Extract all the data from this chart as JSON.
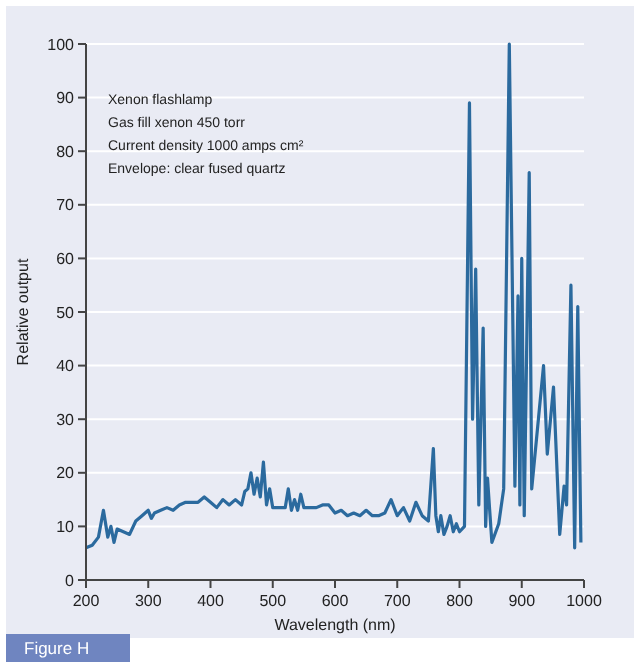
{
  "chart_data": {
    "type": "line",
    "xlabel": "Wavelength (nm)",
    "ylabel": "Relative output",
    "annotations": [
      "Xenon flashlamp",
      "Gas fill xenon 450 torr",
      "Current density 1000 amps cm²",
      "Envelope: clear fused quartz",
      "Figure H"
    ],
    "xlim": [
      200,
      1000
    ],
    "xticks": [
      200,
      300,
      400,
      500,
      600,
      700,
      800,
      900,
      1000
    ],
    "ylim": [
      0,
      100
    ],
    "yticks": [
      0,
      10,
      20,
      30,
      40,
      50,
      60,
      70,
      80,
      90,
      100
    ],
    "grid": "y",
    "series": [
      {
        "color": "#2b6a9e",
        "x": [
          200,
          210,
          220,
          228,
          235,
          240,
          245,
          250,
          260,
          270,
          280,
          290,
          300,
          305,
          310,
          320,
          330,
          340,
          350,
          360,
          370,
          380,
          390,
          400,
          410,
          420,
          430,
          440,
          450,
          455,
          460,
          465,
          470,
          475,
          480,
          485,
          490,
          495,
          500,
          510,
          520,
          525,
          530,
          535,
          540,
          545,
          550,
          560,
          570,
          580,
          590,
          600,
          610,
          620,
          630,
          640,
          650,
          660,
          670,
          680,
          690,
          700,
          710,
          720,
          730,
          740,
          750,
          758,
          762,
          766,
          770,
          775,
          780,
          785,
          790,
          795,
          800,
          808,
          816,
          821,
          826,
          831,
          838,
          842,
          845,
          852,
          863,
          871,
          880,
          889,
          894,
          897,
          900,
          904,
          912,
          916,
          935,
          941,
          951,
          961,
          968,
          972,
          979,
          985,
          990,
          995
        ],
        "values": [
          6,
          6.5,
          8,
          13,
          8,
          10,
          7,
          9.5,
          9,
          8.5,
          11,
          12,
          13,
          11.5,
          12.5,
          13,
          13.5,
          13,
          14,
          14.5,
          14.5,
          14.5,
          15.5,
          14.5,
          13.5,
          15,
          14,
          15,
          14,
          16.5,
          17,
          20,
          16,
          19,
          15.5,
          22,
          14,
          17,
          13.5,
          13.5,
          13.5,
          17,
          13,
          15,
          13,
          16,
          13.5,
          13.5,
          13.5,
          14,
          14,
          12.5,
          13,
          12,
          12.5,
          12,
          13,
          12,
          12,
          12.5,
          15,
          12,
          13.5,
          11,
          14.5,
          12,
          11,
          24.5,
          12,
          9,
          12,
          8.5,
          10,
          12,
          9,
          10.5,
          9,
          10,
          89,
          30,
          58,
          14,
          47,
          10,
          19,
          7,
          10.5,
          17,
          100,
          17.5,
          53,
          14,
          60,
          12,
          76,
          17,
          40,
          23.5,
          36,
          8.5,
          17.5,
          14,
          55,
          6,
          51,
          7
        ]
      }
    ]
  }
}
